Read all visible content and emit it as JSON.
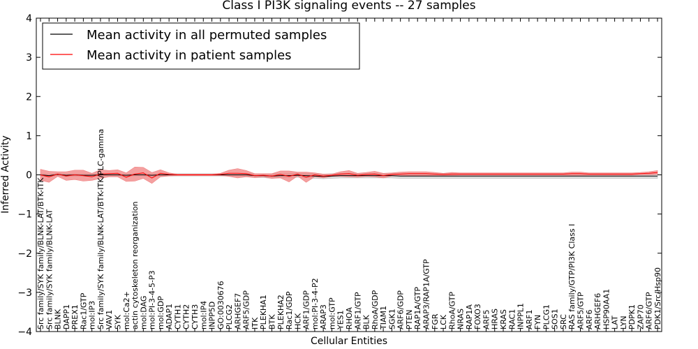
{
  "chart_data": {
    "type": "line",
    "title": "Class I PI3K signaling events -- 27 samples",
    "xlabel": "Cellular Entities",
    "ylabel": "Inferred Activity",
    "ylim": [
      -4,
      4
    ],
    "yticks": [
      -4,
      -3,
      -2,
      -1,
      0,
      1,
      2,
      3,
      4
    ],
    "ytick_labels": [
      "−4",
      "−3",
      "−2",
      "−1",
      "0",
      "1",
      "2",
      "3",
      "4"
    ],
    "grid": false,
    "legend": {
      "placement": "upper-left",
      "entries": [
        {
          "label": "Mean activity in all permuted samples",
          "color": "#000000"
        },
        {
          "label": "Mean activity in patient samples",
          "color": "#ff0000"
        }
      ]
    },
    "categories": [
      "Src family/SYK family/BLNK-LAT/BTK-ITK",
      "Src family/SYK family/BLNK-LAT",
      "BLNK",
      "DAPP1",
      "PREX1",
      "Rac1/GTP",
      "mol:IP3",
      "Src family/SYK family/BLNK-LAT/BTK-ITK/PLC-gamma",
      "VAV1",
      "SYK",
      "mol:Ca2+",
      "actin cytoskeleton reorganization",
      "mol:DAG",
      "mol:PI-3-4-5-P3",
      "mol:GDP",
      "ADAP1",
      "CYTH1",
      "CYTH2",
      "CYTH3",
      "mol:IP4",
      "INPP5D",
      "GO:0030676",
      "PLCG2",
      "ARHGEF7",
      "ARF5/GDP",
      "ITK",
      "PLEKHA1",
      "BTK",
      "PLEKHA2",
      "Rac1/GDP",
      "HCK",
      "ARF1/GDP",
      "mol:PI-3-4-P2",
      "ARAP3",
      "mol:GTP",
      "YES1",
      "RHOA",
      "ARF1/GTP",
      "BLK",
      "RhoA/GDP",
      "TIAM1",
      "SGK1",
      "ARF6/GDP",
      "PTEN",
      "RAP1A/GTP",
      "ARAP3/RAP1A/GTP",
      "FGR",
      "LCK",
      "RhoA/GTP",
      "NRAS",
      "RAP1A",
      "FOXO3",
      "ARF5",
      "HRAS",
      "KRAS",
      "RAC1",
      "INPPL1",
      "ARF1",
      "FYN",
      "PLCG1",
      "SOS1",
      "SRC",
      "RAS family/GTP/PI3K Class I",
      "ARF5/GTP",
      "ARF6",
      "ARHGEF6",
      "HSP90AA1",
      "LAT",
      "LYN",
      "PDPK1",
      "ZAP70",
      "ARF6/GTP",
      "PDK1/Src/Hsp90"
    ],
    "series": [
      {
        "name": "Mean activity in patient samples",
        "color": "#ff0000",
        "values": [
          0.0,
          -0.05,
          0.02,
          -0.03,
          0.0,
          -0.02,
          -0.05,
          0.02,
          0.03,
          0.04,
          -0.06,
          0.02,
          0.05,
          -0.08,
          0.04,
          0.01,
          0.0,
          0.0,
          0.0,
          0.0,
          0.0,
          0.01,
          0.04,
          0.04,
          0.03,
          -0.02,
          -0.01,
          -0.03,
          0.01,
          -0.04,
          0.02,
          -0.06,
          0.0,
          -0.03,
          -0.01,
          0.02,
          0.03,
          -0.01,
          0.01,
          0.02,
          -0.02,
          0.01,
          0.02,
          0.03,
          0.03,
          0.03,
          0.02,
          0.01,
          0.02,
          0.02,
          0.02,
          0.02,
          0.02,
          0.02,
          0.02,
          0.02,
          0.02,
          0.02,
          0.02,
          0.02,
          0.02,
          0.02,
          0.03,
          0.03,
          0.02,
          0.02,
          0.02,
          0.02,
          0.02,
          0.02,
          0.03,
          0.04,
          0.06
        ],
        "band": [
          0.14,
          0.14,
          0.06,
          0.11,
          0.12,
          0.14,
          0.09,
          0.11,
          0.08,
          0.09,
          0.11,
          0.18,
          0.14,
          0.14,
          0.09,
          0.04,
          0.02,
          0.02,
          0.02,
          0.02,
          0.02,
          0.03,
          0.08,
          0.12,
          0.08,
          0.05,
          0.04,
          0.06,
          0.09,
          0.14,
          0.05,
          0.13,
          0.05,
          0.05,
          0.03,
          0.06,
          0.08,
          0.05,
          0.05,
          0.07,
          0.06,
          0.04,
          0.05,
          0.05,
          0.05,
          0.05,
          0.04,
          0.03,
          0.04,
          0.03,
          0.03,
          0.03,
          0.03,
          0.03,
          0.03,
          0.03,
          0.03,
          0.03,
          0.03,
          0.03,
          0.03,
          0.03,
          0.04,
          0.04,
          0.03,
          0.03,
          0.03,
          0.03,
          0.03,
          0.03,
          0.03,
          0.04,
          0.05
        ]
      },
      {
        "name": "Mean activity in all permuted samples",
        "color": "#000000",
        "values": [
          0.0,
          -0.02,
          0.01,
          -0.01,
          0.0,
          -0.01,
          -0.01,
          0.0,
          0.0,
          0.0,
          -0.01,
          0.0,
          0.0,
          -0.01,
          0.0,
          0.0,
          0.0,
          0.0,
          0.0,
          0.0,
          0.0,
          0.0,
          0.0,
          0.0,
          0.0,
          -0.02,
          -0.02,
          -0.03,
          -0.02,
          -0.02,
          -0.01,
          -0.02,
          -0.03,
          -0.04,
          -0.03,
          -0.02,
          -0.02,
          -0.02,
          -0.02,
          -0.02,
          -0.02,
          -0.02,
          -0.03,
          -0.03,
          -0.03,
          -0.03,
          -0.03,
          -0.03,
          -0.03,
          -0.03,
          -0.03,
          -0.03,
          -0.03,
          -0.03,
          -0.03,
          -0.03,
          -0.03,
          -0.03,
          -0.03,
          -0.03,
          -0.03,
          -0.03,
          -0.03,
          -0.03,
          -0.03,
          -0.03,
          -0.03,
          -0.03,
          -0.03,
          -0.03,
          -0.03,
          -0.03,
          -0.03
        ],
        "band": [
          0.03,
          0.03,
          0.03,
          0.03,
          0.03,
          0.03,
          0.03,
          0.03,
          0.03,
          0.03,
          0.03,
          0.03,
          0.03,
          0.03,
          0.03,
          0.03,
          0.03,
          0.03,
          0.03,
          0.03,
          0.03,
          0.03,
          0.03,
          0.04,
          0.04,
          0.05,
          0.05,
          0.06,
          0.05,
          0.05,
          0.05,
          0.05,
          0.06,
          0.06,
          0.06,
          0.06,
          0.06,
          0.06,
          0.06,
          0.06,
          0.06,
          0.06,
          0.06,
          0.06,
          0.06,
          0.06,
          0.06,
          0.06,
          0.06,
          0.06,
          0.06,
          0.06,
          0.06,
          0.06,
          0.06,
          0.06,
          0.06,
          0.06,
          0.06,
          0.06,
          0.06,
          0.06,
          0.06,
          0.06,
          0.06,
          0.06,
          0.06,
          0.06,
          0.06,
          0.06,
          0.06,
          0.06,
          0.06
        ]
      }
    ]
  }
}
